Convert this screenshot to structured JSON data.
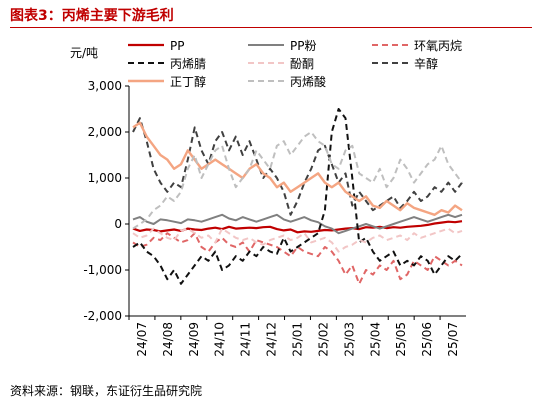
{
  "header": {
    "title": "图表3：丙烯主要下游毛利"
  },
  "footer": {
    "source": "资料来源：钢联，东证衍生品研究院"
  },
  "chart_data": {
    "type": "line",
    "title": "",
    "ylabel": "元/吨",
    "xlabel": "",
    "ylim": [
      -2000,
      3000
    ],
    "yticks": [
      -2000,
      -1000,
      0,
      1000,
      2000,
      3000
    ],
    "ytick_labels": [
      "-2,000",
      "-1,000",
      "0",
      "1,000",
      "2,000",
      "3,000"
    ],
    "xtick_labels": [
      "24/07",
      "24/08",
      "24/09",
      "24/10",
      "24/11",
      "24/12",
      "25/01",
      "25/02",
      "25/03",
      "25/04",
      "25/05",
      "25/06",
      "25/07"
    ],
    "grid": false,
    "legend_position": "top",
    "x_period": "2024/07 – 2025/07, weekly",
    "series": [
      {
        "name": "PP",
        "color": "#c00000",
        "style": "solid",
        "values": [
          -100,
          -150,
          -120,
          -130,
          -160,
          -140,
          -120,
          -150,
          -100,
          -120,
          -130,
          -100,
          -80,
          -110,
          -60,
          -100,
          -90,
          -80,
          -90,
          -70,
          -60,
          -110,
          -140,
          -120,
          -180,
          -160,
          -170,
          -150,
          -130,
          -140,
          -120,
          -100,
          -90,
          -110,
          -70,
          -80,
          -60,
          -90,
          -70,
          -80,
          -60,
          -50,
          -40,
          -20,
          10,
          30,
          50,
          40,
          60
        ]
      },
      {
        "name": "PP粉",
        "color": "#808080",
        "style": "solid",
        "values": [
          100,
          150,
          50,
          0,
          100,
          80,
          50,
          20,
          100,
          80,
          50,
          100,
          150,
          200,
          120,
          80,
          150,
          100,
          50,
          100,
          150,
          200,
          100,
          50,
          100,
          150,
          80,
          40,
          -50,
          -100,
          -200,
          -150,
          -100,
          -50,
          0,
          -50,
          -100,
          -50,
          0,
          50,
          100,
          150,
          100,
          50,
          100,
          150,
          200,
          150,
          200
        ]
      },
      {
        "name": "环氧丙烷",
        "color": "#e06666",
        "style": "dashed",
        "values": [
          -400,
          -500,
          -450,
          -300,
          -350,
          -200,
          -300,
          -400,
          -350,
          -200,
          -500,
          -600,
          -400,
          -300,
          -450,
          -500,
          -400,
          -600,
          -350,
          -400,
          -450,
          -500,
          -600,
          -700,
          -500,
          -600,
          -650,
          -700,
          -500,
          -600,
          -800,
          -1100,
          -900,
          -1300,
          -1000,
          -1100,
          -900,
          -1000,
          -800,
          -1200,
          -1100,
          -800,
          -900,
          -1000,
          -700,
          -800,
          -900,
          -800,
          -900
        ]
      },
      {
        "name": "丙烯腈",
        "color": "#111111",
        "style": "dashed",
        "values": [
          -500,
          -400,
          -600,
          -700,
          -900,
          -1200,
          -1000,
          -1300,
          -1100,
          -900,
          -700,
          -800,
          -600,
          -1000,
          -900,
          -700,
          -800,
          -600,
          -700,
          -500,
          -600,
          -650,
          -300,
          -600,
          -500,
          -400,
          -300,
          -200,
          300,
          2000,
          2500,
          2300,
          1000,
          -400,
          -300,
          -600,
          -800,
          -700,
          -600,
          -900,
          -800,
          -900,
          -700,
          -800,
          -1100,
          -900,
          -700,
          -800,
          -650
        ]
      },
      {
        "name": "酚酮",
        "color": "#f2c6c6",
        "style": "dashed",
        "values": [
          -200,
          -300,
          -250,
          -100,
          -200,
          -300,
          -350,
          -150,
          -100,
          -200,
          -300,
          -250,
          -400,
          -100,
          -200,
          -300,
          -350,
          -300,
          -400,
          -450,
          -350,
          -300,
          -250,
          -350,
          -300,
          -200,
          -400,
          -350,
          -300,
          -400,
          -600,
          -500,
          -450,
          -350,
          -400,
          -300,
          -250,
          -350,
          -300,
          -250,
          -350,
          -200,
          -300,
          -250,
          -200,
          -150,
          -100,
          -200,
          -150
        ]
      },
      {
        "name": "辛醇",
        "color": "#404040",
        "style": "dashed",
        "values": [
          2000,
          2300,
          1800,
          1200,
          900,
          700,
          900,
          800,
          1400,
          2100,
          1600,
          1300,
          1800,
          2000,
          1600,
          1900,
          1500,
          1800,
          1400,
          1000,
          1200,
          1000,
          700,
          200,
          500,
          900,
          1200,
          1600,
          1700,
          1300,
          900,
          1100,
          400,
          700,
          500,
          300,
          400,
          500,
          600,
          350,
          500,
          700,
          500,
          600,
          800,
          700,
          900,
          700,
          900
        ]
      },
      {
        "name": "正丁醇",
        "color": "#f4a582",
        "style": "solid",
        "values": [
          2100,
          2200,
          1900,
          1700,
          1500,
          1400,
          1200,
          1300,
          1600,
          1400,
          1200,
          1300,
          1400,
          1300,
          1200,
          1100,
          1000,
          1200,
          1300,
          1100,
          1000,
          800,
          900,
          700,
          800,
          900,
          1000,
          1100,
          900,
          800,
          900,
          700,
          600,
          500,
          600,
          400,
          350,
          500,
          400,
          300,
          450,
          350,
          300,
          250,
          200,
          300,
          250,
          400,
          300
        ]
      },
      {
        "name": "丙烯酸",
        "color": "#bfbfbf",
        "style": "dashed",
        "values": [
          -100,
          0,
          100,
          300,
          400,
          600,
          500,
          700,
          1200,
          1500,
          1000,
          1300,
          1600,
          1700,
          1200,
          800,
          1000,
          1200,
          1600,
          1400,
          1200,
          1700,
          1800,
          1500,
          1700,
          1900,
          2000,
          1800,
          1700,
          1300,
          1200,
          1600,
          1700,
          1100,
          1000,
          900,
          1200,
          800,
          1000,
          1400,
          1200,
          900,
          1100,
          1300,
          1400,
          1700,
          1300,
          1100,
          900
        ]
      }
    ]
  }
}
